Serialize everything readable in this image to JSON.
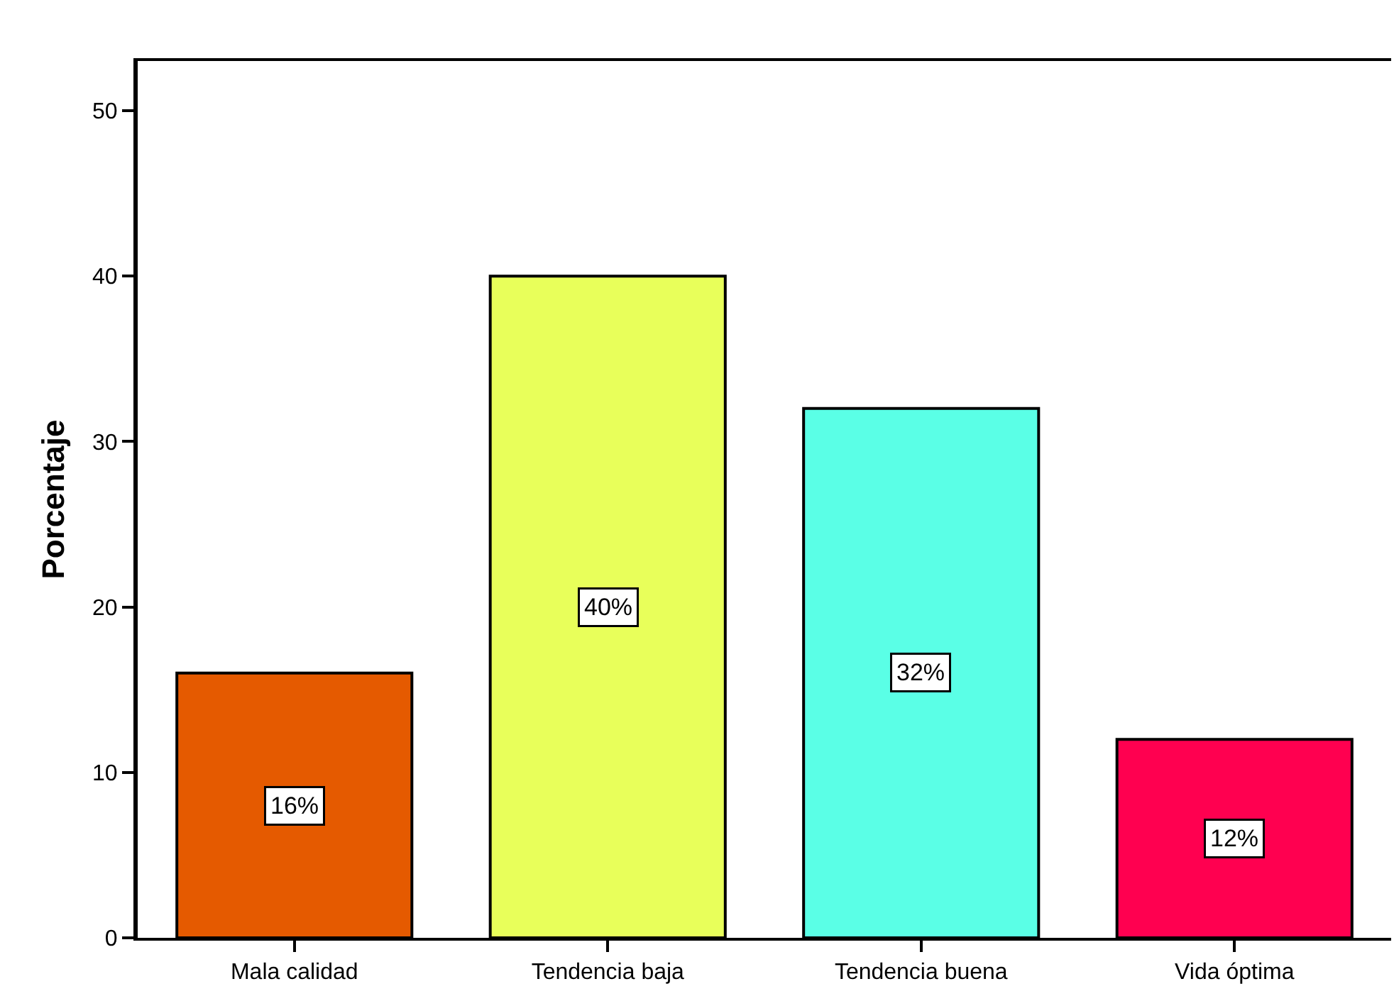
{
  "chart_data": {
    "type": "bar",
    "ylabel": "Porcentaje",
    "categories": [
      "Mala calidad",
      "Tendencia baja",
      "Tendencia buena",
      "Vida óptima"
    ],
    "values": [
      16,
      40,
      32,
      12
    ],
    "colors": [
      "#e55a00",
      "#e8ff5a",
      "#5affe6",
      "#ff0050"
    ],
    "value_labels": [
      "16%",
      "40%",
      "32%",
      "12%"
    ],
    "ylim": [
      0,
      53
    ],
    "yticks": [
      0,
      10,
      20,
      30,
      40,
      50
    ]
  }
}
